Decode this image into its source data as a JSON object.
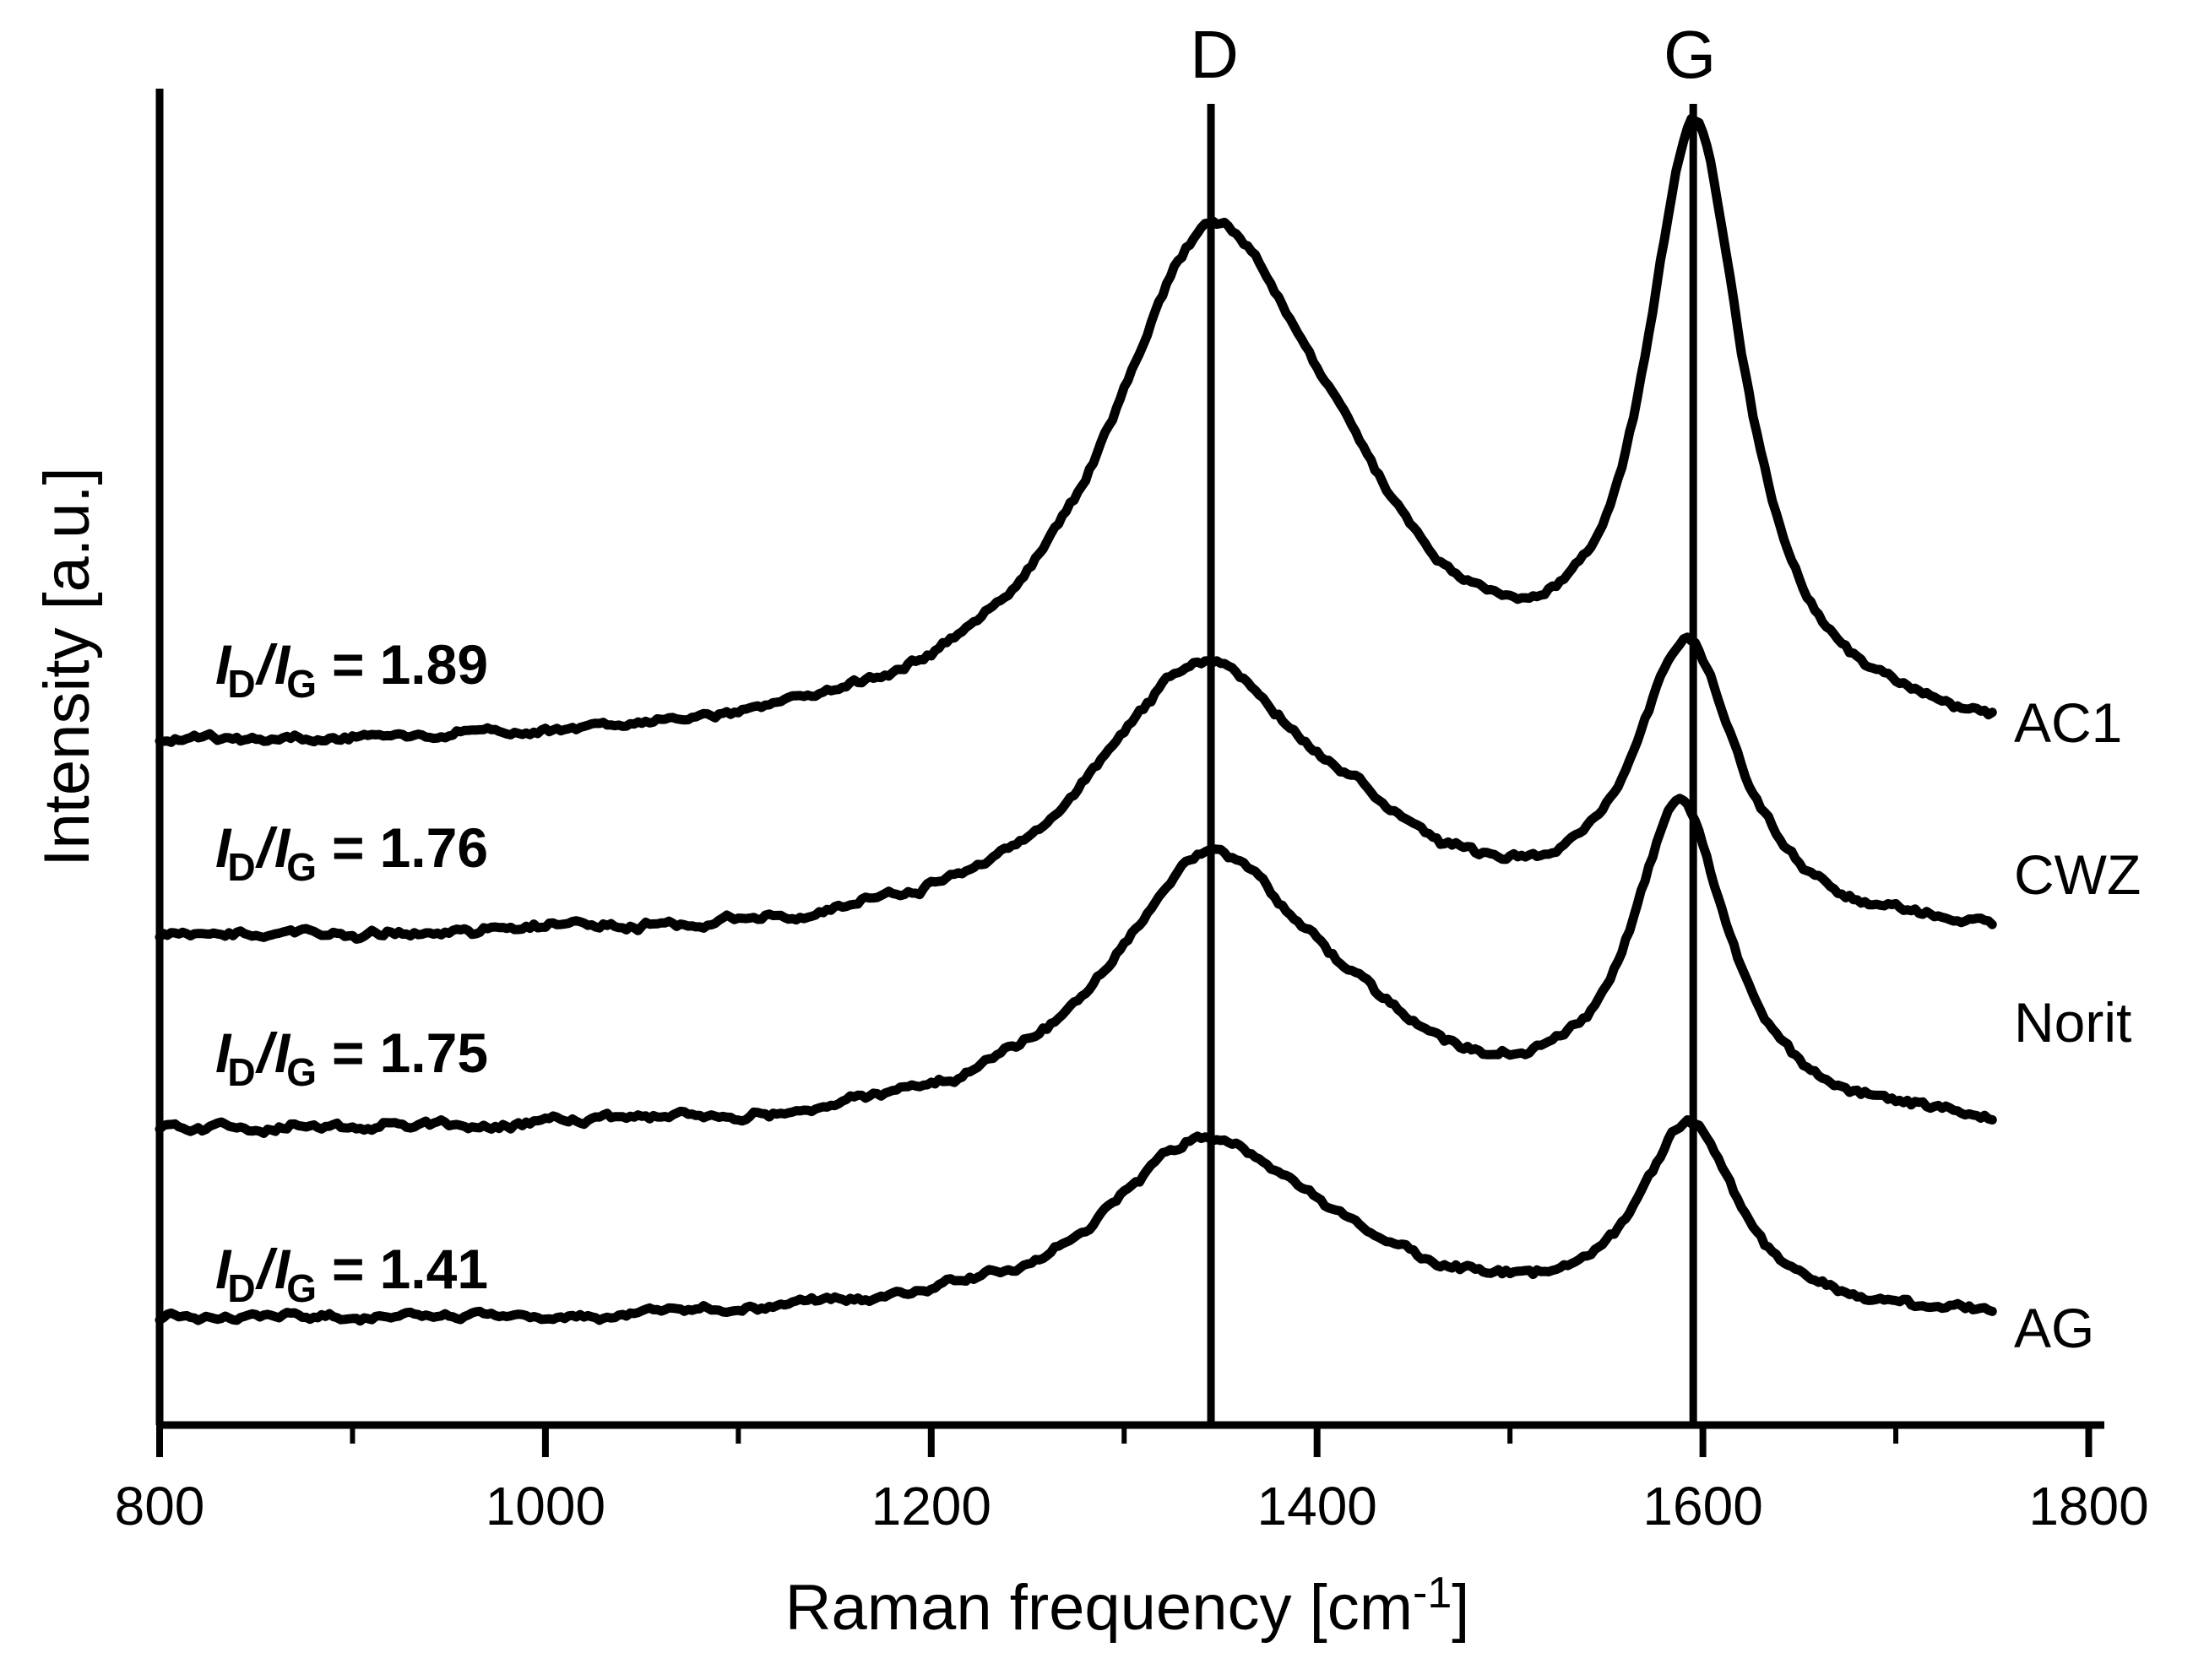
{
  "figure": {
    "background": "#ffffff",
    "ink": "#000000"
  },
  "chart_data": {
    "type": "line",
    "title": "",
    "xlabel": {
      "text": "Raman frequency [cm-1]",
      "pre": "Raman frequency [cm",
      "sup": "-1",
      "post": "]"
    },
    "ylabel": "Intensity [a.u.]",
    "xlim": [
      800,
      1800
    ],
    "ylim": "arbitrary units, unlabeled axis",
    "grid": false,
    "x_major_ticks": [
      {
        "label": "800",
        "value": 800
      },
      {
        "label": "1000",
        "value": 1000
      },
      {
        "label": "1200",
        "value": 1200
      },
      {
        "label": "1400",
        "value": 1400
      },
      {
        "label": "1600",
        "value": 1600
      },
      {
        "label": "1800",
        "value": 1800
      }
    ],
    "x_minor_ticks": [
      900,
      1100,
      1300,
      1500,
      1700
    ],
    "bands": {
      "d": {
        "label": "D",
        "center": 1345
      },
      "g": {
        "label": "G",
        "center": 1595
      }
    },
    "ratio_symbols": {
      "i": "I",
      "d": "D",
      "slash": "/",
      "g": "G",
      "eq": "="
    },
    "series": [
      {
        "name": "AC1",
        "id_ig": "1.89",
        "offset": 0.504,
        "x_start": 800,
        "x_end": 1750,
        "d_peak": {
          "center": 1347,
          "amplitude": 0.378,
          "hwhm": 70
        },
        "g_peak": {
          "center": 1596,
          "amplitude": 0.442,
          "hwhm": 31
        }
      },
      {
        "name": "CWZ",
        "id_ig": "1.76",
        "offset": 0.363,
        "x_start": 800,
        "x_end": 1750,
        "d_peak": {
          "center": 1341,
          "amplitude": 0.201,
          "hwhm": 70
        },
        "g_peak": {
          "center": 1592,
          "amplitude": 0.207,
          "hwhm": 33
        }
      },
      {
        "name": "Norit",
        "id_ig": "1.75",
        "offset": 0.219,
        "x_start": 800,
        "x_end": 1750,
        "d_peak": {
          "center": 1345,
          "amplitude": 0.202,
          "hwhm": 66
        },
        "g_peak": {
          "center": 1588,
          "amplitude": 0.231,
          "hwhm": 30
        }
      },
      {
        "name": "AG",
        "id_ig": "1.41",
        "offset": 0.078,
        "x_start": 800,
        "x_end": 1750,
        "d_peak": {
          "center": 1343,
          "amplitude": 0.134,
          "hwhm": 64
        },
        "g_peak": {
          "center": 1593,
          "amplitude": 0.14,
          "hwhm": 30
        }
      }
    ],
    "noise": "small random wiggle on every trace",
    "legend_position": "labels at right end of each curve"
  }
}
